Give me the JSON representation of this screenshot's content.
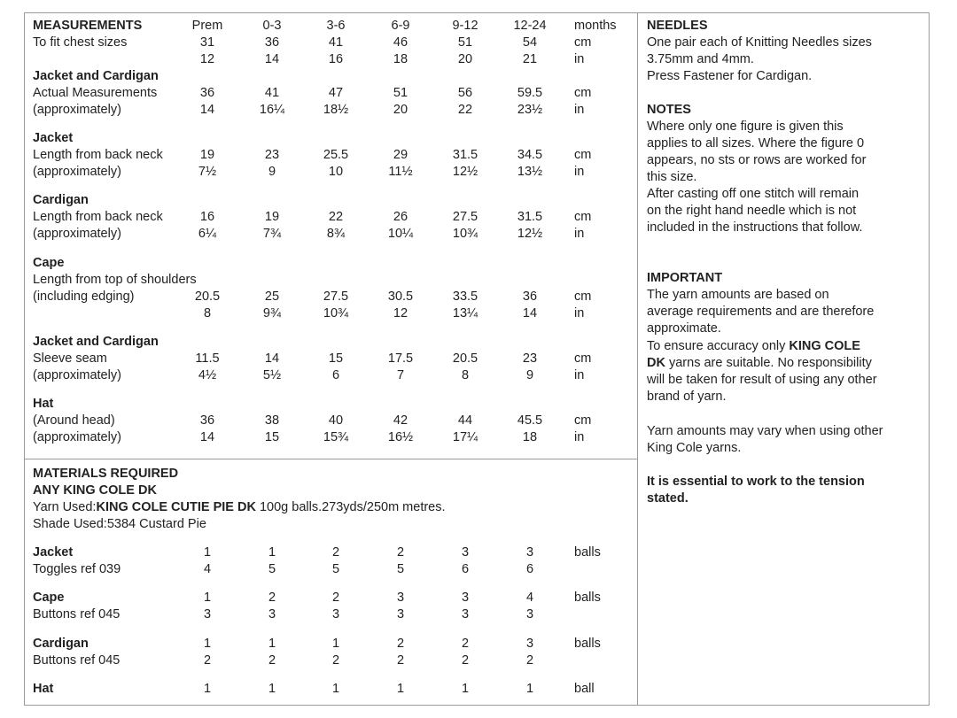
{
  "measurements": {
    "title": "MEASUREMENTS",
    "sizes": [
      "Prem",
      "0-3",
      "3-6",
      "6-9",
      "9-12",
      "12-24"
    ],
    "sizes_unit": "months",
    "chest": {
      "label": "To fit chest sizes",
      "cm": [
        "31",
        "36",
        "41",
        "46",
        "51",
        "54"
      ],
      "cm_unit": "cm",
      "in": [
        "12",
        "14",
        "16",
        "18",
        "20",
        "21"
      ],
      "in_unit": "in"
    },
    "actual": {
      "heading": "Jacket and Cardigan",
      "label1": "Actual Measurements",
      "label2": "(approximately)",
      "cm": [
        "36",
        "41",
        "47",
        "51",
        "56",
        "59.5"
      ],
      "cm_unit": "cm",
      "in": [
        "14",
        "16¼",
        "18½",
        "20",
        "22",
        "23½"
      ],
      "in_unit": "in"
    },
    "jacket": {
      "heading": "Jacket",
      "label1": "Length from back neck",
      "label2": "(approximately)",
      "cm": [
        "19",
        "23",
        "25.5",
        "29",
        "31.5",
        "34.5"
      ],
      "cm_unit": "cm",
      "in": [
        "7½",
        "9",
        "10",
        "11½",
        "12½",
        "13½"
      ],
      "in_unit": "in"
    },
    "cardigan": {
      "heading": "Cardigan",
      "label1": "Length from back neck",
      "label2": "(approximately)",
      "cm": [
        "16",
        "19",
        "22",
        "26",
        "27.5",
        "31.5"
      ],
      "cm_unit": "cm",
      "in": [
        "6¼",
        "7¾",
        "8¾",
        "10¼",
        "10¾",
        "12½"
      ],
      "in_unit": "in"
    },
    "cape": {
      "heading": "Cape",
      "label1": "Length from top of shoulders",
      "label2": "(including edging)",
      "cm": [
        "20.5",
        "25",
        "27.5",
        "30.5",
        "33.5",
        "36"
      ],
      "cm_unit": "cm",
      "in": [
        "8",
        "9¾",
        "10¾",
        "12",
        "13¼",
        "14"
      ],
      "in_unit": "in"
    },
    "sleeve": {
      "heading": "Jacket and Cardigan",
      "label1": "Sleeve seam",
      "label2": "(approximately)",
      "cm": [
        "11.5",
        "14",
        "15",
        "17.5",
        "20.5",
        "23"
      ],
      "cm_unit": "cm",
      "in": [
        "4½",
        "5½",
        "6",
        "7",
        "8",
        "9"
      ],
      "in_unit": "in"
    },
    "hat": {
      "heading": "Hat",
      "label1": "(Around head)",
      "label2": "(approximately)",
      "cm": [
        "36",
        "38",
        "40",
        "42",
        "44",
        "45.5"
      ],
      "cm_unit": "cm",
      "in": [
        "14",
        "15",
        "15¾",
        "16½",
        "17¼",
        "18"
      ],
      "in_unit": "in"
    }
  },
  "materials": {
    "title": "MATERIALS REQUIRED",
    "subtitle": "ANY KING COLE DK",
    "yarn_prefix": "Yarn Used:",
    "yarn_name": "KING COLE CUTIE PIE DK",
    "yarn_suffix": " 100g balls.273yds/250m metres.",
    "shade": "Shade Used:5384 Custard Pie",
    "items": [
      {
        "name": "Jacket",
        "balls": [
          "1",
          "1",
          "2",
          "2",
          "3",
          "3"
        ],
        "unit": "balls",
        "extra_label": "Toggles ref 039",
        "extra": [
          "4",
          "5",
          "5",
          "5",
          "6",
          "6"
        ]
      },
      {
        "name": "Cape",
        "balls": [
          "1",
          "2",
          "2",
          "3",
          "3",
          "4"
        ],
        "unit": "balls",
        "extra_label": "Buttons ref 045",
        "extra": [
          "3",
          "3",
          "3",
          "3",
          "3",
          "3"
        ]
      },
      {
        "name": "Cardigan",
        "balls": [
          "1",
          "1",
          "1",
          "2",
          "2",
          "3"
        ],
        "unit": "balls",
        "extra_label": "Buttons ref 045",
        "extra": [
          "2",
          "2",
          "2",
          "2",
          "2",
          "2"
        ]
      },
      {
        "name": "Hat",
        "balls": [
          "1",
          "1",
          "1",
          "1",
          "1",
          "1"
        ],
        "unit": "ball"
      }
    ]
  },
  "needles": {
    "title": "NEEDLES",
    "lines": [
      "One pair each of Knitting Needles sizes",
      "3.75mm and 4mm.",
      "Press Fastener for Cardigan."
    ]
  },
  "notes": {
    "title": "NOTES",
    "lines": [
      "Where only one figure is given this",
      "applies to all sizes.  Where the figure 0",
      "appears, no sts or rows are worked for",
      "this size.",
      "After casting off one stitch will remain",
      "on the right hand needle which is not",
      "included in the instructions that follow."
    ]
  },
  "important": {
    "title": "IMPORTANT",
    "lines": [
      "The yarn amounts are based on",
      "average requirements and are therefore",
      "approximate."
    ],
    "accuracy_prefix": "To ensure accuracy only ",
    "accuracy_bold1": "KING COLE",
    "accuracy_bold2": "DK",
    "accuracy_rest": "  yarns are suitable.  No responsibility",
    "lines2": [
      "will be taken for result of using any other",
      "brand of yarn."
    ],
    "vary": [
      "Yarn amounts may vary when using other",
      "King Cole yarns."
    ],
    "tension": [
      "It is essential to work to the tension",
      "stated."
    ]
  }
}
